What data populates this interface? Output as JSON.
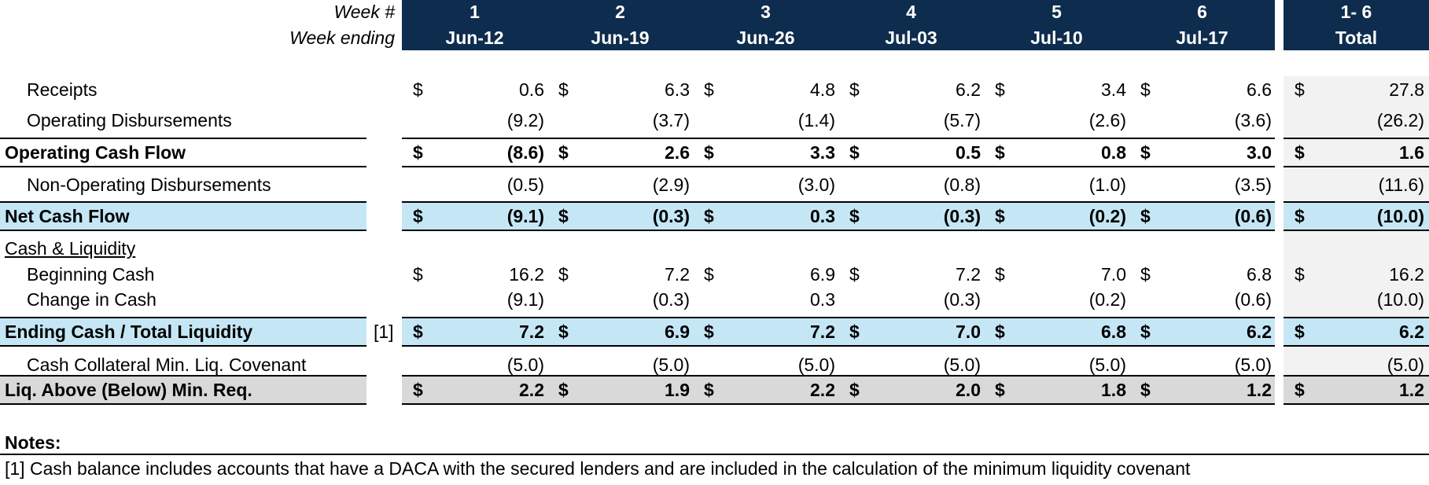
{
  "header": {
    "week_label": "Week #",
    "ending_label": "Week ending",
    "weeks": [
      "1",
      "2",
      "3",
      "4",
      "5",
      "6"
    ],
    "dates": [
      "Jun-12",
      "Jun-19",
      "Jun-26",
      "Jul-03",
      "Jul-10",
      "Jul-17"
    ],
    "total_week": "1- 6",
    "total_label": "Total"
  },
  "currency": "$",
  "rows": [
    {
      "label": "Receipts",
      "values": [
        "0.6",
        "6.3",
        "4.8",
        "6.2",
        "3.4",
        "6.6"
      ],
      "total": "27.8"
    },
    {
      "label": "Operating Disbursements",
      "values": [
        "(9.2)",
        "(3.7)",
        "(1.4)",
        "(5.7)",
        "(2.6)",
        "(3.6)"
      ],
      "total": "(26.2)"
    },
    {
      "label": "Operating Cash Flow",
      "values": [
        "(8.6)",
        "2.6",
        "3.3",
        "0.5",
        "0.8",
        "3.0"
      ],
      "total": "1.6"
    },
    {
      "label": "Non-Operating Disbursements",
      "values": [
        "(0.5)",
        "(2.9)",
        "(3.0)",
        "(0.8)",
        "(1.0)",
        "(3.5)"
      ],
      "total": "(11.6)"
    },
    {
      "label": "Net Cash Flow",
      "values": [
        "(9.1)",
        "(0.3)",
        "0.3",
        "(0.3)",
        "(0.2)",
        "(0.6)"
      ],
      "total": "(10.0)"
    },
    {
      "label": "Cash & Liquidity"
    },
    {
      "label": "Beginning Cash",
      "values": [
        "16.2",
        "7.2",
        "6.9",
        "7.2",
        "7.0",
        "6.8"
      ],
      "total": "16.2"
    },
    {
      "label": "Change in Cash",
      "values": [
        "(9.1)",
        "(0.3)",
        "0.3",
        "(0.3)",
        "(0.2)",
        "(0.6)"
      ],
      "total": "(10.0)"
    },
    {
      "label": "Ending Cash / Total Liquidity",
      "note_ref": "[1]",
      "values": [
        "7.2",
        "6.9",
        "7.2",
        "7.0",
        "6.8",
        "6.2"
      ],
      "total": "6.2"
    },
    {
      "label": "Cash Collateral Min. Liq. Covenant",
      "values": [
        "(5.0)",
        "(5.0)",
        "(5.0)",
        "(5.0)",
        "(5.0)",
        "(5.0)"
      ],
      "total": "(5.0)"
    },
    {
      "label": "Liq. Above (Below) Min. Req.",
      "values": [
        "2.2",
        "1.9",
        "2.2",
        "2.0",
        "1.8",
        "1.2"
      ],
      "total": "1.2"
    }
  ],
  "notes": {
    "title": "Notes:",
    "items": [
      "[1] Cash balance includes accounts that have a DACA with the secured lenders and are included in the calculation of the minimum liquidity covenant"
    ]
  }
}
